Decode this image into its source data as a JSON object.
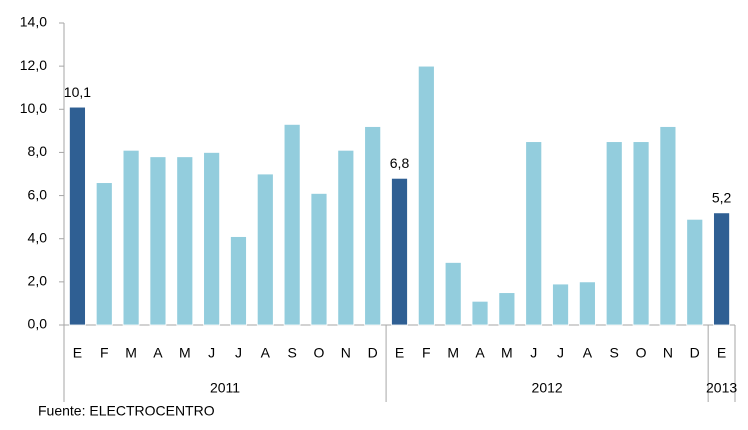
{
  "chart_data": {
    "type": "bar",
    "categories": [
      "E",
      "F",
      "M",
      "A",
      "M",
      "J",
      "J",
      "A",
      "S",
      "O",
      "N",
      "D",
      "E",
      "F",
      "M",
      "A",
      "M",
      "J",
      "J",
      "A",
      "S",
      "O",
      "N",
      "D",
      "E"
    ],
    "values": [
      10.1,
      6.6,
      8.1,
      7.8,
      7.8,
      8.0,
      4.1,
      7.0,
      9.3,
      6.1,
      8.1,
      9.2,
      6.8,
      12.0,
      2.9,
      1.1,
      1.5,
      8.5,
      1.9,
      2.0,
      8.5,
      8.5,
      9.2,
      4.9,
      5.2
    ],
    "value_labels": [
      "10,1",
      null,
      null,
      null,
      null,
      null,
      null,
      null,
      null,
      null,
      null,
      null,
      "6,8",
      null,
      null,
      null,
      null,
      null,
      null,
      null,
      null,
      null,
      null,
      null,
      "5,2"
    ],
    "colors": [
      "#2f5f93",
      "#93cddd",
      "#93cddd",
      "#93cddd",
      "#93cddd",
      "#93cddd",
      "#93cddd",
      "#93cddd",
      "#93cddd",
      "#93cddd",
      "#93cddd",
      "#93cddd",
      "#2f5f93",
      "#93cddd",
      "#93cddd",
      "#93cddd",
      "#93cddd",
      "#93cddd",
      "#93cddd",
      "#93cddd",
      "#93cddd",
      "#93cddd",
      "#93cddd",
      "#93cddd",
      "#2f5f93"
    ],
    "groups": [
      {
        "label": "2011",
        "size": 12
      },
      {
        "label": "2012",
        "size": 12
      },
      {
        "label": "2013",
        "size": 1
      }
    ],
    "ylim": [
      0,
      14
    ],
    "yticks": [
      {
        "value": 0,
        "label": "0,0"
      },
      {
        "value": 2,
        "label": "2,0"
      },
      {
        "value": 4,
        "label": "4,0"
      },
      {
        "value": 6,
        "label": "6,0"
      },
      {
        "value": 8,
        "label": "8,0"
      },
      {
        "value": 10,
        "label": "10,0"
      },
      {
        "value": 12,
        "label": "12,0"
      },
      {
        "value": 14,
        "label": "14,0"
      }
    ],
    "source": "Fuente: ELECTROCENTRO"
  }
}
